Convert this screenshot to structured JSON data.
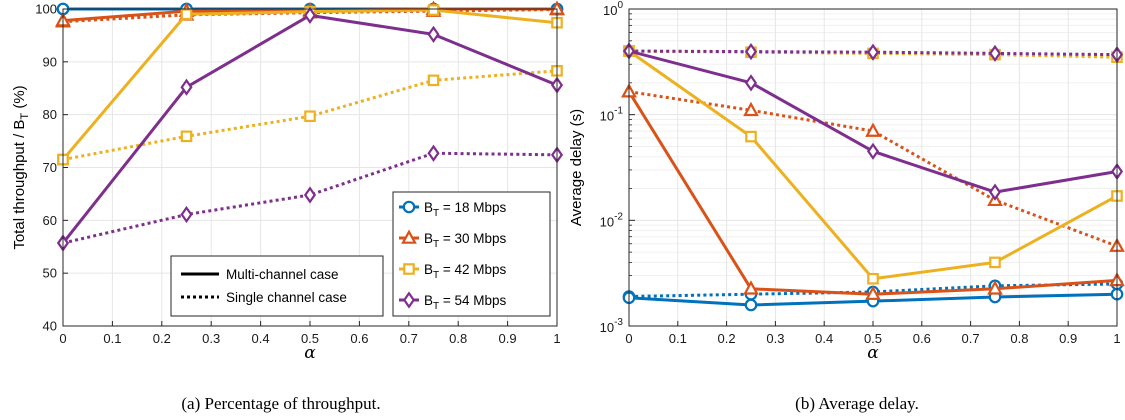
{
  "colors": {
    "series": [
      "#0072BD",
      "#D95319",
      "#EDB120",
      "#7E2F8E"
    ],
    "grid": "#e6e6e6",
    "axis": "#262626"
  },
  "chart_data": [
    {
      "type": "line",
      "caption": "(a) Percentage of throughput.",
      "xlabel": "α",
      "ylabel": "Total throughput / B_T (%)",
      "xlim": [
        0,
        1
      ],
      "ylim": [
        40,
        100
      ],
      "xticks": [
        "0",
        "0.1",
        "0.2",
        "0.3",
        "0.4",
        "0.5",
        "0.6",
        "0.7",
        "0.8",
        "0.9",
        "1"
      ],
      "yticks": [
        "40",
        "50",
        "60",
        "70",
        "80",
        "90",
        "100"
      ],
      "grid": true,
      "x": [
        0,
        0.25,
        0.5,
        0.75,
        1
      ],
      "series": [
        {
          "name": "B_T = 18 Mbps",
          "marker": "circle",
          "case": "multi",
          "values": [
            100,
            100,
            100,
            100,
            100
          ]
        },
        {
          "name": "B_T = 30 Mbps",
          "marker": "triangle",
          "case": "multi",
          "values": [
            97.8,
            99.6,
            99.7,
            100,
            100
          ]
        },
        {
          "name": "B_T = 42 Mbps",
          "marker": "square",
          "case": "multi",
          "values": [
            71.5,
            99.0,
            99.5,
            99.8,
            97.4
          ]
        },
        {
          "name": "B_T = 54 Mbps",
          "marker": "diamond",
          "case": "multi",
          "values": [
            55.7,
            85.2,
            98.8,
            95.2,
            85.6
          ]
        },
        {
          "name": "B_T = 18 Mbps",
          "marker": "circle",
          "case": "single",
          "values": [
            100,
            100,
            100,
            100,
            100
          ]
        },
        {
          "name": "B_T = 30 Mbps",
          "marker": "triangle",
          "case": "single",
          "values": [
            97.6,
            98.9,
            99.3,
            99.6,
            99.9
          ]
        },
        {
          "name": "B_T = 42 Mbps",
          "marker": "square",
          "case": "single",
          "values": [
            71.5,
            75.9,
            79.7,
            86.5,
            88.3
          ]
        },
        {
          "name": "B_T = 54 Mbps",
          "marker": "diamond",
          "case": "single",
          "values": [
            55.7,
            61.1,
            64.8,
            72.7,
            72.4
          ]
        }
      ],
      "legend_series": {
        "placement": "bottom-right",
        "entries": [
          {
            "base": "B",
            "sub": "T",
            "rest": " = 18 Mbps",
            "marker": "circle"
          },
          {
            "base": "B",
            "sub": "T",
            "rest": " = 30 Mbps",
            "marker": "triangle"
          },
          {
            "base": "B",
            "sub": "T",
            "rest": " = 42 Mbps",
            "marker": "square"
          },
          {
            "base": "B",
            "sub": "T",
            "rest": " = 54 Mbps",
            "marker": "diamond"
          }
        ]
      },
      "legend_case": {
        "placement": "bottom-center",
        "entries": [
          {
            "label": "Multi-channel case",
            "style": "solid"
          },
          {
            "label": "Single channel case",
            "style": "dotted"
          }
        ]
      }
    },
    {
      "type": "line",
      "caption": "(b) Average delay.",
      "xlabel": "α",
      "ylabel": "Average delay (s)",
      "yscale": "log",
      "xlim": [
        0,
        1
      ],
      "ylim": [
        0.001,
        1
      ],
      "xticks": [
        "0",
        "0.1",
        "0.2",
        "0.3",
        "0.4",
        "0.5",
        "0.6",
        "0.7",
        "0.8",
        "0.9",
        "1"
      ],
      "yticks": [
        {
          "base": "10",
          "exp": "-3"
        },
        {
          "base": "10",
          "exp": "-2"
        },
        {
          "base": "10",
          "exp": "-1"
        },
        {
          "base": "10",
          "exp": "0"
        }
      ],
      "grid": true,
      "x": [
        0,
        0.25,
        0.5,
        0.75,
        1
      ],
      "series": [
        {
          "name": "B_T = 18 Mbps",
          "marker": "circle",
          "case": "multi",
          "values": [
            0.00185,
            0.00158,
            0.00172,
            0.00188,
            0.002
          ]
        },
        {
          "name": "B_T = 30 Mbps",
          "marker": "triangle",
          "case": "multi",
          "values": [
            0.165,
            0.00225,
            0.002,
            0.00225,
            0.0027
          ]
        },
        {
          "name": "B_T = 42 Mbps",
          "marker": "square",
          "case": "multi",
          "values": [
            0.4,
            0.062,
            0.0028,
            0.004,
            0.017
          ]
        },
        {
          "name": "B_T = 54 Mbps",
          "marker": "diamond",
          "case": "multi",
          "values": [
            0.4,
            0.2,
            0.045,
            0.0185,
            0.029
          ]
        },
        {
          "name": "B_T = 18 Mbps",
          "marker": "circle",
          "case": "single",
          "values": [
            0.0019,
            0.002,
            0.0021,
            0.0024,
            0.0025
          ]
        },
        {
          "name": "B_T = 30 Mbps",
          "marker": "triangle",
          "case": "single",
          "values": [
            0.165,
            0.11,
            0.07,
            0.0155,
            0.0057
          ]
        },
        {
          "name": "B_T = 42 Mbps",
          "marker": "square",
          "case": "single",
          "values": [
            0.4,
            0.39,
            0.38,
            0.37,
            0.35
          ]
        },
        {
          "name": "B_T = 54 Mbps",
          "marker": "diamond",
          "case": "single",
          "values": [
            0.4,
            0.395,
            0.39,
            0.38,
            0.37
          ]
        }
      ]
    }
  ]
}
